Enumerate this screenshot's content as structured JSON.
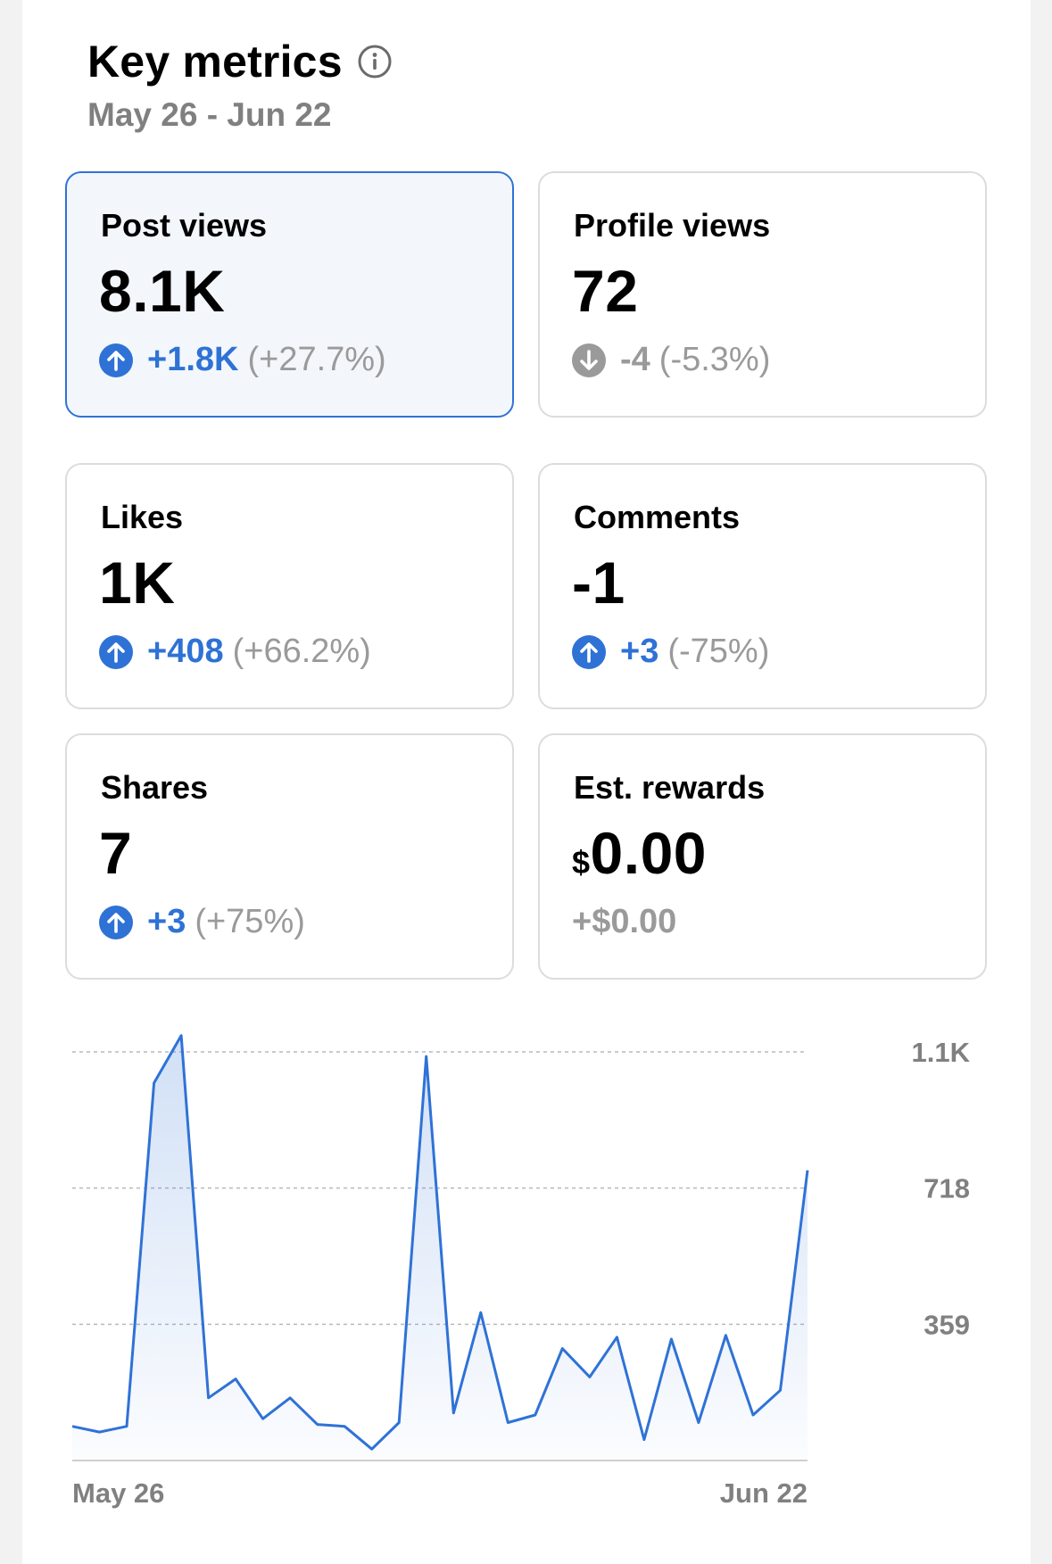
{
  "header": {
    "title": "Key metrics",
    "info_icon": "info-icon",
    "date_range": "May 26 - Jun 22"
  },
  "colors": {
    "accent": "#2f72d6",
    "muted": "#9a9a9a",
    "selected_bg": "#f3f7fc"
  },
  "metrics": [
    {
      "label": "Post views",
      "value": "8.1K",
      "delta": "+1.8K",
      "pct": "(+27.7%)",
      "direction": "up",
      "selected": true
    },
    {
      "label": "Profile views",
      "value": "72",
      "delta": "-4",
      "pct": "(-5.3%)",
      "direction": "down",
      "selected": false
    },
    {
      "label": "Likes",
      "value": "1K",
      "delta": "+408",
      "pct": "(+66.2%)",
      "direction": "up",
      "selected": false
    },
    {
      "label": "Comments",
      "value": "-1",
      "delta": "+3",
      "pct": "(-75%)",
      "direction": "up",
      "selected": false
    },
    {
      "label": "Shares",
      "value": "7",
      "delta": "+3",
      "pct": "(+75%)",
      "direction": "up",
      "selected": false
    },
    {
      "label": "Est. rewards",
      "currency": "$",
      "value": "0.00",
      "delta": "+$0.00",
      "direction": "none",
      "selected": false
    }
  ],
  "chart_data": {
    "type": "area",
    "series": [
      {
        "values": [
          90,
          75,
          90,
          995,
          1120,
          165,
          215,
          110,
          165,
          95,
          90,
          30,
          100,
          1065,
          125,
          390,
          100,
          120,
          295,
          220,
          325,
          55,
          320,
          100,
          330,
          120,
          185,
          765
        ]
      }
    ],
    "x_tick_labels": [
      "May 26",
      "Jun 22"
    ],
    "y_tick_labels": [
      "1.1K",
      "718",
      "359"
    ],
    "y_ticks": [
      1077,
      718,
      359
    ],
    "ylim": [
      0,
      1077
    ],
    "grid": true,
    "line_color": "#2f72d6"
  }
}
